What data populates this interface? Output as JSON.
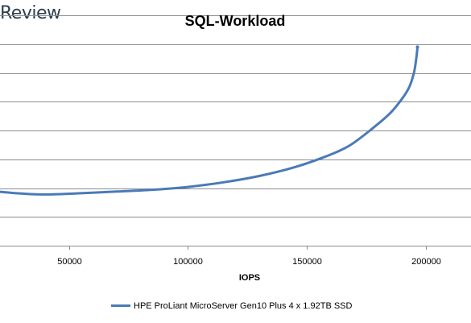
{
  "brand": {
    "text": "Review"
  },
  "chart_data": {
    "type": "line",
    "title": "SQL-Workload",
    "xlabel": "IOPS",
    "ylabel": "",
    "x_ticks": [
      50000,
      100000,
      150000,
      200000
    ],
    "x_tick_labels": [
      "50000",
      "100000",
      "150000",
      "200000"
    ],
    "xlim": [
      21000,
      219000
    ],
    "ylim": [
      0,
      8
    ],
    "y_gridlines": [
      1,
      2,
      3,
      4,
      5,
      6,
      7,
      8
    ],
    "y_tick_labels_visible": false,
    "grid": true,
    "legend": "bottom",
    "series": [
      {
        "name": "HPE ProLiant MicroServer Gen10 Plus 4 x 1.92TB SSD",
        "color": "#4a7ab8",
        "x": [
          21000,
          30000,
          40000,
          55000,
          70000,
          85000,
          100000,
          115000,
          130000,
          145000,
          158000,
          168000,
          178000,
          185000,
          190000,
          193000,
          195000,
          196000,
          196500
        ],
        "y": [
          1.87,
          1.81,
          1.78,
          1.82,
          1.88,
          1.94,
          2.04,
          2.2,
          2.42,
          2.73,
          3.1,
          3.48,
          4.1,
          4.6,
          5.1,
          5.5,
          6.0,
          6.5,
          6.9
        ]
      }
    ]
  }
}
